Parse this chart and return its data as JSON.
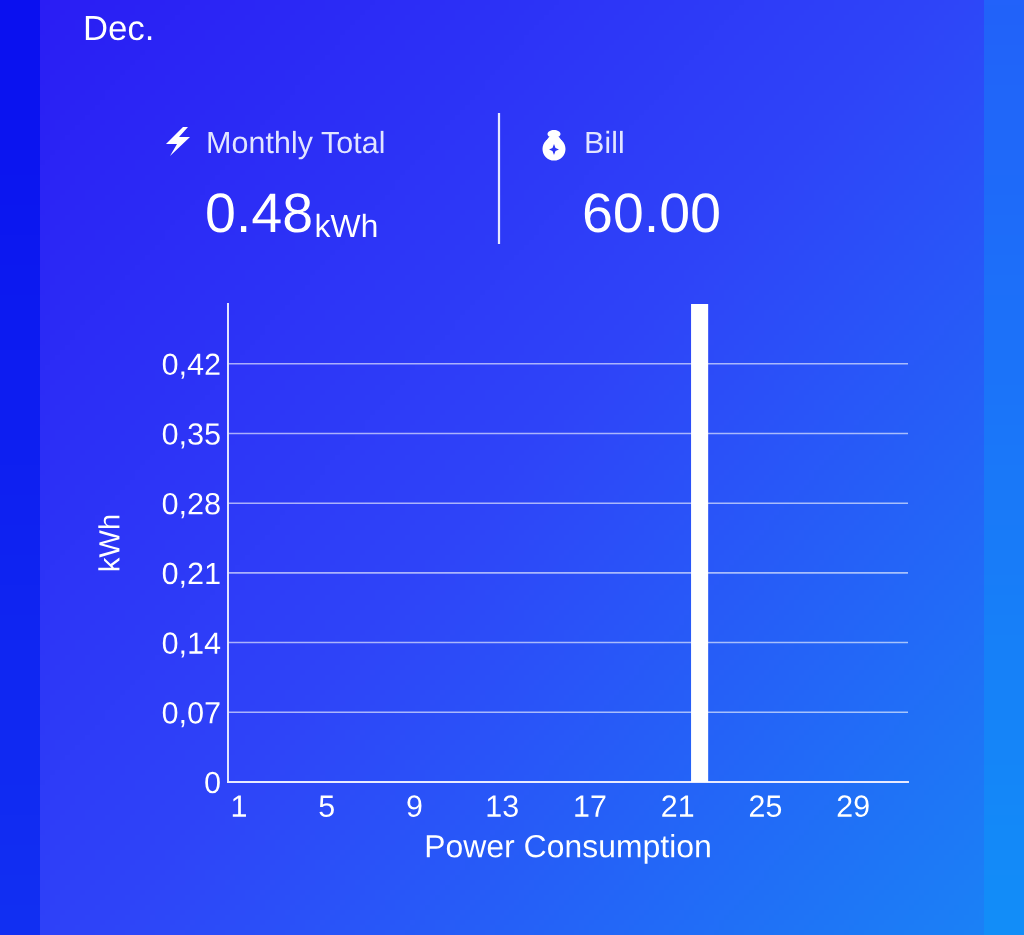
{
  "chart_data": {
    "type": "bar",
    "title": "Dec.",
    "xlabel": "Power Consumption",
    "ylabel": "kWh",
    "annotations": [
      "Monthly Total",
      "0.48",
      "kWh",
      "Bill",
      "60.00"
    ],
    "x": [
      22
    ],
    "values": [
      0.48
    ],
    "color": "#ffffff",
    "xlim": [
      0.5,
      31.5
    ],
    "xticks": [
      1,
      5,
      9,
      13,
      17,
      21,
      25,
      29
    ],
    "ylim": [
      0,
      0.48
    ],
    "yticks": [
      0,
      {
        "value": 0.07,
        "label": "0,07"
      },
      {
        "value": 0.14,
        "label": "0,14"
      },
      {
        "value": 0.21,
        "label": "0,21"
      },
      {
        "value": 0.28,
        "label": "0,28"
      },
      {
        "value": 0.35,
        "label": "0,35"
      },
      {
        "value": 0.42,
        "label": "0,42"
      }
    ],
    "grid": "y"
  }
}
